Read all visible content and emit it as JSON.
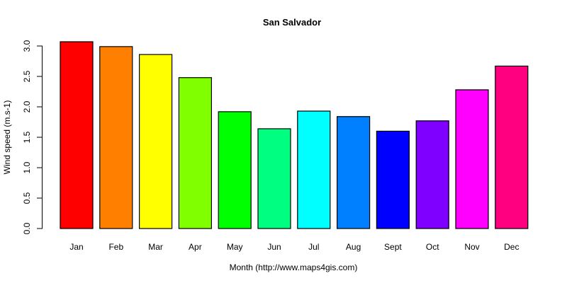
{
  "chart_data": {
    "type": "bar",
    "title": "San Salvador",
    "xlabel": "Month (http://www.maps4gis.com)",
    "ylabel": "Wind speed (m.s-1)",
    "ylim": [
      0,
      3.0
    ],
    "yticks": [
      "0.0",
      "0.5",
      "1.0",
      "1.5",
      "2.0",
      "2.5",
      "3.0"
    ],
    "grid": false,
    "legend": null,
    "categories": [
      "Jan",
      "Feb",
      "Mar",
      "Apr",
      "May",
      "Jun",
      "Jul",
      "Aug",
      "Sept",
      "Oct",
      "Nov",
      "Dec"
    ],
    "values": [
      3.07,
      2.99,
      2.86,
      2.48,
      1.92,
      1.64,
      1.93,
      1.84,
      1.6,
      1.77,
      2.28,
      2.67
    ],
    "colors": [
      "#FF0000",
      "#FF8000",
      "#FFFF00",
      "#80FF00",
      "#00FF00",
      "#00FF80",
      "#00FFFF",
      "#0080FF",
      "#0000FF",
      "#8000FF",
      "#FF00FF",
      "#FF0080"
    ]
  }
}
